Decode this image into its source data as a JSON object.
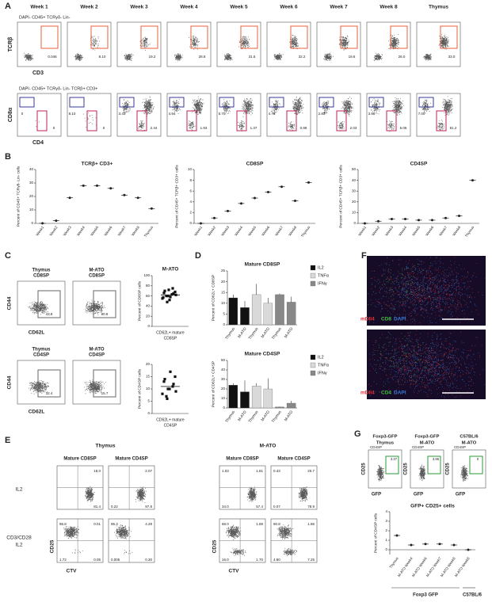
{
  "panel_labels": {
    "a": "A",
    "b": "B",
    "c": "C",
    "d": "D",
    "e": "E",
    "f": "F",
    "g": "G"
  },
  "panel_a": {
    "columns": [
      "Week 1",
      "Week 2",
      "Week 3",
      "Week 4",
      "Week 5",
      "Week 6",
      "Week 7",
      "Week 8",
      "Thymus"
    ],
    "row1": {
      "gate": "DAPI- CD45+ TCRγδ- Lin-",
      "y_label": "TCRβ",
      "x_label": "CD3",
      "values": [
        "0.046",
        "8.10",
        "19.2",
        "28.8",
        "31.5",
        "32.2",
        "19.6",
        "26.0",
        "33.0"
      ]
    },
    "row2": {
      "gate": "DAPI- CD45+ TCRγδ- Lin- TCRβ+ CD3+",
      "y_label": "CD8α",
      "x_label": "CD4",
      "upper": [
        "0",
        "8.10",
        "3.43",
        "4.94",
        "5.70",
        "4.76",
        "2.83",
        "3.98",
        "7.00"
      ],
      "lower": [
        "0",
        "0",
        "2.44",
        "1.93",
        "1.37",
        "0.98",
        "2.03",
        "5.05",
        "81.2"
      ]
    }
  },
  "panel_b": {
    "charts": [
      {
        "type": "dot",
        "title": "TCRβ+ CD3+",
        "y_label": "Percent of CD45+ TCRγδ- Lin- cells",
        "categories": [
          "Week1",
          "Week2",
          "Week3",
          "Week4",
          "Week5",
          "Week6",
          "Week7",
          "Week8",
          "Thymus"
        ],
        "values": [
          0.05,
          2,
          19,
          28,
          28,
          26,
          21,
          19,
          11
        ],
        "ylim": [
          0,
          40
        ],
        "yticks": [
          0,
          10,
          20,
          30,
          40
        ]
      },
      {
        "type": "dot",
        "title": "CD8SP",
        "y_label": "Percent of CD45+ TCRβ+ CD3+ cells",
        "categories": [
          "Week1",
          "Week2",
          "Week3",
          "Week4",
          "Week5",
          "Week6",
          "Week7",
          "Week8",
          "Thymus"
        ],
        "values": [
          0,
          1,
          2.3,
          3.7,
          4.7,
          5.8,
          6.8,
          4.2,
          7.6
        ],
        "ylim": [
          0,
          10
        ],
        "yticks": [
          0,
          2,
          4,
          6,
          8,
          10
        ]
      },
      {
        "type": "dot",
        "title": "CD4SP",
        "y_label": "Percent of CD45+ TCRβ+ CD3+ cells",
        "categories": [
          "Week1",
          "Week2",
          "Week3",
          "Week4",
          "Week5",
          "Week6",
          "Week7",
          "Week8",
          "Thymus"
        ],
        "values": [
          0,
          2,
          4,
          4,
          3,
          3,
          5,
          7,
          40
        ],
        "ylim": [
          0,
          50
        ],
        "yticks": [
          0,
          10,
          20,
          30,
          40,
          50
        ]
      }
    ]
  },
  "panel_c": {
    "y_label": "CD44",
    "x_label": "CD62L",
    "flow": [
      {
        "title": [
          "Thymus",
          "CD8SP"
        ],
        "value": "43.8"
      },
      {
        "title": [
          "M-ATO",
          "CD8SP"
        ],
        "value": "80.8"
      },
      {
        "title": [
          "Thymus",
          "CD4SP"
        ],
        "value": "32.4"
      },
      {
        "title": [
          "M-ATO",
          "CD4SP"
        ],
        "value": "15.7"
      }
    ],
    "charts": [
      {
        "type": "scatter",
        "title": "M-ATO",
        "y_label": "Percent of CD8SP cells",
        "x_label": [
          "CD62L+ mature",
          "CD8SP"
        ],
        "values": [
          55,
          60,
          65,
          70,
          58,
          62,
          48,
          75,
          66,
          52,
          68,
          60,
          63,
          57,
          72
        ],
        "mean": 62,
        "ylim": [
          0,
          100
        ],
        "yticks": [
          0,
          20,
          40,
          60,
          80,
          100
        ]
      },
      {
        "type": "scatter",
        "y_label": "Percent of CD4SP cells",
        "x_label": [
          "CD62L+ mature",
          "CD4SP"
        ],
        "values": [
          8,
          10,
          12,
          14,
          17,
          9,
          6,
          11,
          13,
          10,
          15,
          7
        ],
        "mean": 11,
        "ylim": [
          0,
          20
        ],
        "yticks": [
          0,
          5,
          10,
          15,
          20
        ]
      }
    ]
  },
  "panel_d": {
    "charts": [
      {
        "type": "bar",
        "title": "Mature CD8SP",
        "y_label": "Percent of CD62L+ CD8SP",
        "categories": [
          "Thymus",
          "M-ATO",
          "Thymus",
          "M-ATO",
          "Thymus",
          "M-ATO"
        ],
        "values": [
          12.5,
          8,
          14,
          10,
          14,
          10.5
        ],
        "errors": [
          1.5,
          3,
          5,
          2.5,
          0.5,
          2.5
        ],
        "colors": [
          "#111111",
          "#111111",
          "#d9d9d9",
          "#d9d9d9",
          "#888888",
          "#888888"
        ],
        "legend": [
          {
            "name": "IL2",
            "color": "#111111"
          },
          {
            "name": "TNFα",
            "color": "#d9d9d9"
          },
          {
            "name": "IFNγ",
            "color": "#888888"
          }
        ],
        "ylim": [
          0,
          25
        ],
        "yticks": [
          0,
          5,
          10,
          15,
          20,
          25
        ]
      },
      {
        "type": "bar",
        "title": "Mature CD4SP",
        "y_label": "Percent of CD62L+ CD4SP",
        "categories": [
          "Thymus",
          "M-ATO",
          "Thymus",
          "M-ATO",
          "Thymus",
          "M-ATO"
        ],
        "values": [
          24,
          17,
          23,
          20,
          1,
          5
        ],
        "errors": [
          2,
          12,
          3,
          11,
          0.5,
          2.5
        ],
        "colors": [
          "#111111",
          "#111111",
          "#d9d9d9",
          "#d9d9d9",
          "#888888",
          "#888888"
        ],
        "legend": [
          {
            "name": "IL2",
            "color": "#111111"
          },
          {
            "name": "TNFα",
            "color": "#d9d9d9"
          },
          {
            "name": "IFNγ",
            "color": "#888888"
          }
        ],
        "ylim": [
          0,
          50
        ],
        "yticks": [
          0,
          10,
          20,
          30,
          40,
          50
        ]
      }
    ]
  },
  "panel_e": {
    "groups": [
      "Thymus",
      "M-ATO"
    ],
    "subheaders": [
      "Mature CD8SP",
      "Mature CD4SP",
      "Mature CD8SP",
      "Mature CD4SP"
    ],
    "rows": [
      [
        "IL2"
      ],
      [
        "CD3/CD28",
        "IL2"
      ]
    ],
    "y_label": "CD25",
    "x_label": "CTV",
    "plots": [
      [
        {
          "ur": "18.0",
          "lr": "81.4"
        },
        {
          "ur": "2.07",
          "ll": "0.22",
          "lr": "97.8"
        },
        {
          "ul": "1.03",
          "ur": "1.81",
          "ll": "34.0",
          "lr": "57.4"
        },
        {
          "ul": "0.43",
          "ur": "20.7",
          "ll": "0.07",
          "lr": "78.9"
        }
      ],
      [
        {
          "ul": "96.8",
          "ur": "0.01",
          "ll": "1.72",
          "lr": "0.05"
        },
        {
          "ul": "95.3",
          "ur": "4.28",
          "ll": "0.005",
          "lr": "0.30"
        },
        {
          "ul": "68.0",
          "ur": "1.89",
          "ll": "16.0",
          "lr": "1.70"
        },
        {
          "ul": "90.8",
          "ur": "1.86",
          "ll": "4.80",
          "lr": "7.25"
        }
      ]
    ]
  },
  "panel_f": {
    "images": [
      {
        "labels": [
          {
            "text": "mDll4",
            "color": "#e0303a"
          },
          {
            "text": "CD8",
            "color": "#3fbf3f"
          },
          {
            "text": "DAPI",
            "color": "#3a7bd5"
          }
        ]
      },
      {
        "labels": [
          {
            "text": "mDll4",
            "color": "#e0303a"
          },
          {
            "text": "CD4",
            "color": "#3fbf3f"
          },
          {
            "text": "DAPI",
            "color": "#3a7bd5"
          }
        ]
      }
    ]
  },
  "panel_g": {
    "subset": "CD4SP",
    "y_label": "CD25",
    "x_label": "GFP",
    "flow": [
      {
        "title": [
          "Foxp3-GFP",
          "Thymus"
        ],
        "value": "3.37"
      },
      {
        "title": [
          "Foxp3-GFP",
          "M-ATO"
        ],
        "value": "3.96"
      },
      {
        "title": [
          "C57BL/6",
          "M-ATO"
        ],
        "value": "0"
      }
    ],
    "chart": {
      "type": "dot",
      "title": "GFP+ CD25+ cells",
      "y_label": "Percent of CD4SP cells",
      "categories": [
        "Thymus",
        "M-ATO Week4",
        "M-ATO Week6",
        "M-ATO Week7",
        "M-ATO Week8",
        "M-ATO Week8"
      ],
      "values": [
        1.5,
        0.5,
        0.6,
        0.6,
        0.5,
        0
      ],
      "ylim": [
        -0.5,
        4
      ],
      "yticks": [
        0,
        1,
        2,
        3,
        4
      ],
      "groups": [
        "Foxp3 GFP",
        "C57BL/6"
      ]
    }
  }
}
